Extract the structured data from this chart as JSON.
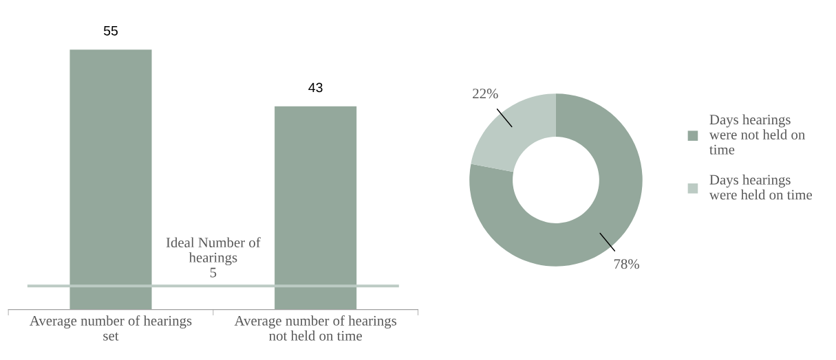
{
  "chart_data": [
    {
      "type": "bar",
      "categories": [
        "Average number of hearings\nset",
        "Average number of hearings\nnot held on time"
      ],
      "values": [
        55,
        43
      ],
      "color": "#94a89c",
      "data_labels": true,
      "tick_labels": "x",
      "ref_lines": [
        {
          "axis": "y",
          "value": 5,
          "label": "Ideal Number of\nhearings\n5",
          "color": "#bccbc4"
        }
      ]
    },
    {
      "type": "donut",
      "categories": [
        "Days hearings\nwere not held on\ntime",
        "Days hearings\nwere held on time"
      ],
      "values": [
        78,
        22
      ],
      "colors": [
        "#94a89c",
        "#bccbc4"
      ],
      "value_labels": [
        "78%",
        "22%"
      ],
      "legend": "right"
    }
  ]
}
